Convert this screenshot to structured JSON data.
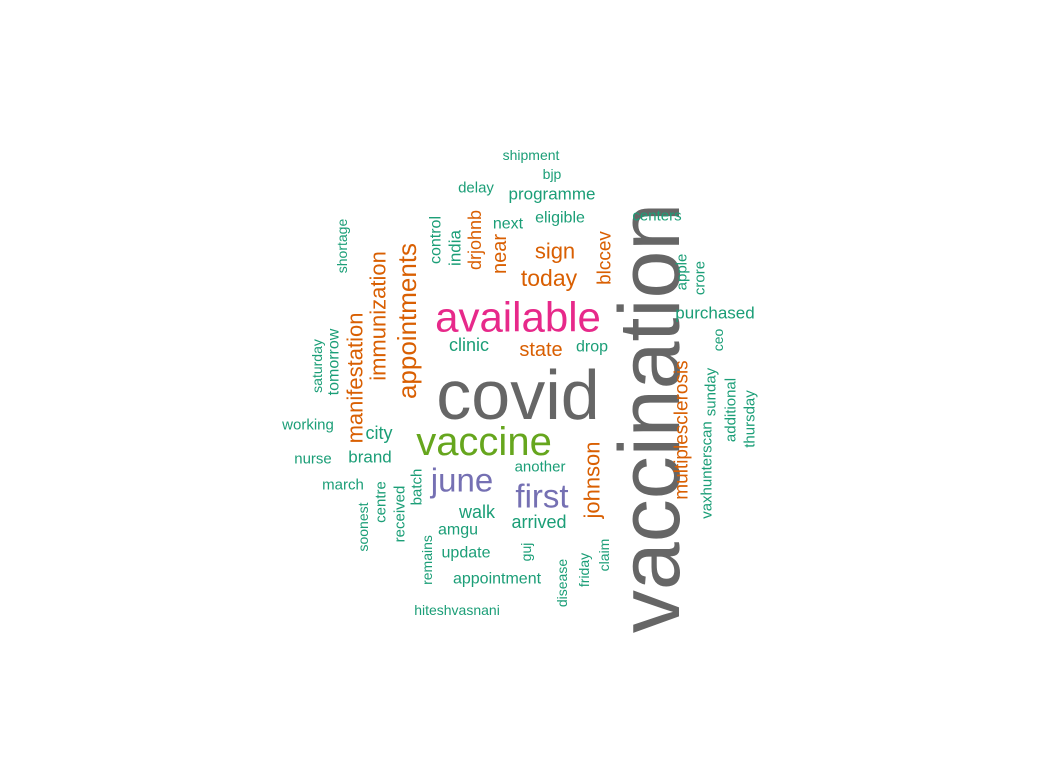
{
  "chart_data": {
    "type": "wordcloud",
    "colors": {
      "gray": "#666666",
      "green": "#1b9e77",
      "orange": "#d95f02",
      "purple": "#7570b3",
      "pink": "#e7298a",
      "lime": "#66a61e"
    },
    "words": [
      {
        "text": "vaccination",
        "color": "gray",
        "freq": 100
      },
      {
        "text": "covid",
        "color": "gray",
        "freq": 82
      },
      {
        "text": "available",
        "color": "pink",
        "freq": 48
      },
      {
        "text": "vaccine",
        "color": "lime",
        "freq": 46
      },
      {
        "text": "june",
        "color": "purple",
        "freq": 36
      },
      {
        "text": "first",
        "color": "purple",
        "freq": 33
      },
      {
        "text": "appointments",
        "color": "orange",
        "freq": 26
      },
      {
        "text": "immunization",
        "color": "orange",
        "freq": 22
      },
      {
        "text": "manifestation",
        "color": "orange",
        "freq": 21
      },
      {
        "text": "today",
        "color": "orange",
        "freq": 23
      },
      {
        "text": "sign",
        "color": "orange",
        "freq": 22
      },
      {
        "text": "johnson",
        "color": "orange",
        "freq": 22
      },
      {
        "text": "multiplesclerosis",
        "color": "orange",
        "freq": 20
      },
      {
        "text": "state",
        "color": "orange",
        "freq": 20
      },
      {
        "text": "near",
        "color": "orange",
        "freq": 20
      },
      {
        "text": "blccev",
        "color": "orange",
        "freq": 19
      },
      {
        "text": "drjohnb",
        "color": "orange",
        "freq": 18
      },
      {
        "text": "clinic",
        "color": "green",
        "freq": 17
      },
      {
        "text": "arrived",
        "color": "green",
        "freq": 17
      },
      {
        "text": "walk",
        "color": "green",
        "freq": 17
      },
      {
        "text": "city",
        "color": "green",
        "freq": 17
      },
      {
        "text": "india",
        "color": "green",
        "freq": 16
      },
      {
        "text": "control",
        "color": "green",
        "freq": 16
      },
      {
        "text": "programme",
        "color": "green",
        "freq": 16
      },
      {
        "text": "purchased",
        "color": "green",
        "freq": 16
      },
      {
        "text": "brand",
        "color": "green",
        "freq": 16
      },
      {
        "text": "tomorrow",
        "color": "green",
        "freq": 16
      },
      {
        "text": "drop",
        "color": "green",
        "freq": 15
      },
      {
        "text": "eligible",
        "color": "green",
        "freq": 15
      },
      {
        "text": "next",
        "color": "green",
        "freq": 15
      },
      {
        "text": "delay",
        "color": "green",
        "freq": 15
      },
      {
        "text": "centers",
        "color": "green",
        "freq": 15
      },
      {
        "text": "apple",
        "color": "green",
        "freq": 15
      },
      {
        "text": "crore",
        "color": "green",
        "freq": 15
      },
      {
        "text": "another",
        "color": "green",
        "freq": 15
      },
      {
        "text": "amgu",
        "color": "green",
        "freq": 15
      },
      {
        "text": "update",
        "color": "green",
        "freq": 15
      },
      {
        "text": "appointment",
        "color": "green",
        "freq": 15
      },
      {
        "text": "working",
        "color": "green",
        "freq": 15
      },
      {
        "text": "nurse",
        "color": "green",
        "freq": 15
      },
      {
        "text": "march",
        "color": "green",
        "freq": 15
      },
      {
        "text": "batch",
        "color": "green",
        "freq": 15
      },
      {
        "text": "received",
        "color": "green",
        "freq": 15
      },
      {
        "text": "centre",
        "color": "green",
        "freq": 15
      },
      {
        "text": "soonest",
        "color": "green",
        "freq": 14
      },
      {
        "text": "remains",
        "color": "green",
        "freq": 14
      },
      {
        "text": "guj",
        "color": "green",
        "freq": 14
      },
      {
        "text": "disease",
        "color": "green",
        "freq": 14
      },
      {
        "text": "friday",
        "color": "green",
        "freq": 14
      },
      {
        "text": "claim",
        "color": "green",
        "freq": 14
      },
      {
        "text": "saturday",
        "color": "green",
        "freq": 14
      },
      {
        "text": "shortage",
        "color": "green",
        "freq": 14
      },
      {
        "text": "vaxhunterscan",
        "color": "green",
        "freq": 14
      },
      {
        "text": "sunday",
        "color": "green",
        "freq": 14
      },
      {
        "text": "additional",
        "color": "green",
        "freq": 14
      },
      {
        "text": "thursday",
        "color": "green",
        "freq": 14
      },
      {
        "text": "ceo",
        "color": "green",
        "freq": 14
      },
      {
        "text": "shipment",
        "color": "green",
        "freq": 14
      },
      {
        "text": "bjp",
        "color": "green",
        "freq": 14
      },
      {
        "text": "hiteshvasnani",
        "color": "green",
        "freq": 14
      }
    ]
  }
}
